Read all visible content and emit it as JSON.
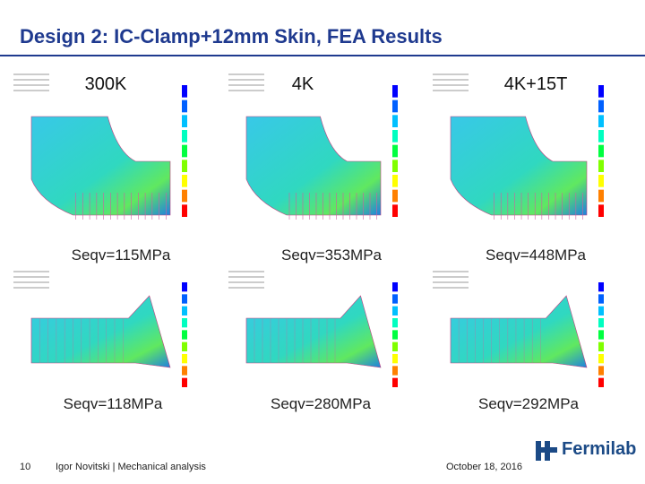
{
  "title": "Design 2: IC-Clamp+12mm Skin, FEA Results",
  "columns": [
    "300K",
    "4K",
    "4K+15T"
  ],
  "results": [
    [
      "Seqv=115MPa",
      "Seqv=353MPa",
      "Seqv=448MPa"
    ],
    [
      "Seqv=118MPa",
      "Seqv=280MPa",
      "Seqv=292MPa"
    ]
  ],
  "footer": {
    "page": "10",
    "author": "Igor Novitski | Mechanical analysis",
    "date": "October 18, 2016",
    "logo": "Fermilab"
  }
}
